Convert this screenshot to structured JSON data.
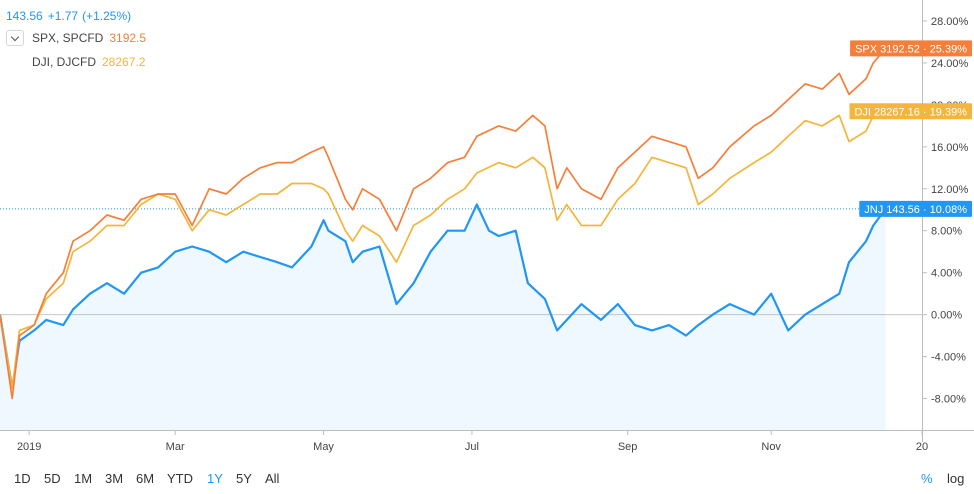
{
  "legend": {
    "main": {
      "price": "143.56",
      "change": "+1.77",
      "change_pct": "(+1.25%)",
      "color": "#2196f3"
    },
    "series": [
      {
        "name": "SPX, SPCFD",
        "value": "3192.5",
        "color": "#f57f3a"
      },
      {
        "name": "DJI, DJCFD",
        "value": "28267.2",
        "color": "#f5b53a"
      }
    ]
  },
  "badges": [
    {
      "text": "SPX 3192.52 · 25.39%",
      "color": "#f57f3a",
      "y": 25.39
    },
    {
      "text": "DJI 28267.16 · 19.39%",
      "color": "#f5b53a",
      "y": 19.39
    },
    {
      "text": "JNJ 143.56 · 10.08%",
      "color": "#2196f3",
      "y": 10.08
    }
  ],
  "toolbar": {
    "ranges": [
      "1D",
      "5D",
      "1M",
      "3M",
      "6M",
      "YTD",
      "1Y",
      "5Y",
      "All"
    ],
    "active": "1Y",
    "percent_label": "%",
    "log_label": "log"
  },
  "chart_data": {
    "type": "line",
    "y_unit": "%",
    "ylim": [
      -11,
      30
    ],
    "y_ticks": [
      -8,
      -4,
      0,
      4,
      8,
      12,
      16,
      20,
      24,
      28
    ],
    "y_tick_labels": [
      "-8.00%",
      "-4.00%",
      "0.00%",
      "4.00%",
      "8.00%",
      "12.00%",
      "16.00%",
      "20.00%",
      "24.00%",
      "28.00%"
    ],
    "x_ticks": [
      {
        "label": "2019",
        "date": "2018-12-31"
      },
      {
        "label": "Mar",
        "date": "2019-03-01"
      },
      {
        "label": "May",
        "date": "2019-05-01"
      },
      {
        "label": "Jul",
        "date": "2019-07-01"
      },
      {
        "label": "Sep",
        "date": "2019-09-03"
      },
      {
        "label": "Nov",
        "date": "2019-11-01"
      },
      {
        "label": "20",
        "date": "2020-01-02"
      }
    ],
    "xlim": [
      "2018-12-19",
      "2020-01-02"
    ],
    "baseline": 0,
    "grid": false,
    "legend_position": "top-left",
    "series": [
      {
        "name": "SPX, SPCFD",
        "color": "#f57f3a",
        "area": false,
        "points": [
          [
            "2018-12-19",
            0
          ],
          [
            "2018-12-24",
            -8
          ],
          [
            "2018-12-27",
            -2
          ],
          [
            "2019-01-02",
            -1
          ],
          [
            "2019-01-07",
            2
          ],
          [
            "2019-01-14",
            4
          ],
          [
            "2019-01-18",
            7
          ],
          [
            "2019-01-25",
            8
          ],
          [
            "2019-02-01",
            9.5
          ],
          [
            "2019-02-08",
            9
          ],
          [
            "2019-02-15",
            11
          ],
          [
            "2019-02-22",
            11.5
          ],
          [
            "2019-03-01",
            11.5
          ],
          [
            "2019-03-08",
            8.5
          ],
          [
            "2019-03-15",
            12
          ],
          [
            "2019-03-22",
            11.5
          ],
          [
            "2019-03-29",
            13
          ],
          [
            "2019-04-05",
            14
          ],
          [
            "2019-04-12",
            14.5
          ],
          [
            "2019-04-18",
            14.5
          ],
          [
            "2019-04-26",
            15.5
          ],
          [
            "2019-05-01",
            16
          ],
          [
            "2019-05-03",
            15
          ],
          [
            "2019-05-10",
            11
          ],
          [
            "2019-05-13",
            10
          ],
          [
            "2019-05-17",
            12
          ],
          [
            "2019-05-24",
            11
          ],
          [
            "2019-05-31",
            8
          ],
          [
            "2019-06-07",
            12
          ],
          [
            "2019-06-14",
            13
          ],
          [
            "2019-06-21",
            14.5
          ],
          [
            "2019-06-28",
            15
          ],
          [
            "2019-07-03",
            17
          ],
          [
            "2019-07-12",
            18
          ],
          [
            "2019-07-19",
            17.5
          ],
          [
            "2019-07-26",
            19
          ],
          [
            "2019-07-31",
            18
          ],
          [
            "2019-08-05",
            12
          ],
          [
            "2019-08-09",
            14
          ],
          [
            "2019-08-15",
            12
          ],
          [
            "2019-08-23",
            11
          ],
          [
            "2019-08-30",
            14
          ],
          [
            "2019-09-06",
            15.5
          ],
          [
            "2019-09-13",
            17
          ],
          [
            "2019-09-20",
            16.5
          ],
          [
            "2019-09-27",
            16
          ],
          [
            "2019-10-02",
            13
          ],
          [
            "2019-10-08",
            14
          ],
          [
            "2019-10-15",
            16
          ],
          [
            "2019-10-25",
            18
          ],
          [
            "2019-11-01",
            19
          ],
          [
            "2019-11-08",
            20.5
          ],
          [
            "2019-11-15",
            22
          ],
          [
            "2019-11-22",
            21.5
          ],
          [
            "2019-11-29",
            23
          ],
          [
            "2019-12-03",
            21
          ],
          [
            "2019-12-10",
            22.5
          ],
          [
            "2019-12-13",
            24
          ],
          [
            "2019-12-18",
            25.39
          ]
        ]
      },
      {
        "name": "DJI, DJCFD",
        "color": "#f5b53a",
        "area": false,
        "points": [
          [
            "2018-12-19",
            0
          ],
          [
            "2018-12-24",
            -7
          ],
          [
            "2018-12-27",
            -1.5
          ],
          [
            "2019-01-02",
            -1
          ],
          [
            "2019-01-07",
            1.5
          ],
          [
            "2019-01-14",
            3
          ],
          [
            "2019-01-18",
            6
          ],
          [
            "2019-01-25",
            7
          ],
          [
            "2019-02-01",
            8.5
          ],
          [
            "2019-02-08",
            8.5
          ],
          [
            "2019-02-15",
            10.5
          ],
          [
            "2019-02-22",
            11.5
          ],
          [
            "2019-03-01",
            11
          ],
          [
            "2019-03-08",
            8
          ],
          [
            "2019-03-15",
            10
          ],
          [
            "2019-03-22",
            9.5
          ],
          [
            "2019-03-29",
            10.5
          ],
          [
            "2019-04-05",
            11.5
          ],
          [
            "2019-04-12",
            11.5
          ],
          [
            "2019-04-18",
            12.5
          ],
          [
            "2019-04-26",
            12.5
          ],
          [
            "2019-05-01",
            12
          ],
          [
            "2019-05-03",
            11.5
          ],
          [
            "2019-05-10",
            8
          ],
          [
            "2019-05-13",
            7
          ],
          [
            "2019-05-17",
            8.5
          ],
          [
            "2019-05-24",
            7.5
          ],
          [
            "2019-05-31",
            5
          ],
          [
            "2019-06-07",
            8.5
          ],
          [
            "2019-06-14",
            9.5
          ],
          [
            "2019-06-21",
            11
          ],
          [
            "2019-06-28",
            12
          ],
          [
            "2019-07-03",
            13.5
          ],
          [
            "2019-07-12",
            14.5
          ],
          [
            "2019-07-19",
            14
          ],
          [
            "2019-07-26",
            15
          ],
          [
            "2019-07-31",
            14
          ],
          [
            "2019-08-05",
            9
          ],
          [
            "2019-08-09",
            10.5
          ],
          [
            "2019-08-15",
            8.5
          ],
          [
            "2019-08-23",
            8.5
          ],
          [
            "2019-08-30",
            11
          ],
          [
            "2019-09-06",
            12.5
          ],
          [
            "2019-09-13",
            15
          ],
          [
            "2019-09-20",
            14.5
          ],
          [
            "2019-09-27",
            14
          ],
          [
            "2019-10-02",
            10.5
          ],
          [
            "2019-10-08",
            11.5
          ],
          [
            "2019-10-15",
            13
          ],
          [
            "2019-10-25",
            14.5
          ],
          [
            "2019-11-01",
            15.5
          ],
          [
            "2019-11-08",
            17
          ],
          [
            "2019-11-15",
            18.5
          ],
          [
            "2019-11-22",
            18
          ],
          [
            "2019-11-29",
            19
          ],
          [
            "2019-12-03",
            16.5
          ],
          [
            "2019-12-10",
            17.5
          ],
          [
            "2019-12-13",
            19
          ],
          [
            "2019-12-18",
            19.39
          ]
        ]
      },
      {
        "name": "JNJ",
        "color": "#2196f3",
        "area": true,
        "points": [
          [
            "2018-12-19",
            0
          ],
          [
            "2018-12-24",
            -7
          ],
          [
            "2018-12-27",
            -2.5
          ],
          [
            "2019-01-02",
            -1.5
          ],
          [
            "2019-01-07",
            -0.5
          ],
          [
            "2019-01-14",
            -1
          ],
          [
            "2019-01-18",
            0.5
          ],
          [
            "2019-01-25",
            2
          ],
          [
            "2019-02-01",
            3
          ],
          [
            "2019-02-08",
            2
          ],
          [
            "2019-02-15",
            4
          ],
          [
            "2019-02-22",
            4.5
          ],
          [
            "2019-03-01",
            6
          ],
          [
            "2019-03-08",
            6.5
          ],
          [
            "2019-03-15",
            6
          ],
          [
            "2019-03-22",
            5
          ],
          [
            "2019-03-29",
            6
          ],
          [
            "2019-04-05",
            5.5
          ],
          [
            "2019-04-12",
            5
          ],
          [
            "2019-04-18",
            4.5
          ],
          [
            "2019-04-26",
            6.5
          ],
          [
            "2019-05-01",
            9
          ],
          [
            "2019-05-03",
            8
          ],
          [
            "2019-05-10",
            7
          ],
          [
            "2019-05-13",
            5
          ],
          [
            "2019-05-17",
            6
          ],
          [
            "2019-05-24",
            6.5
          ],
          [
            "2019-05-31",
            1
          ],
          [
            "2019-06-07",
            3
          ],
          [
            "2019-06-14",
            6
          ],
          [
            "2019-06-21",
            8
          ],
          [
            "2019-06-28",
            8
          ],
          [
            "2019-07-03",
            10.5
          ],
          [
            "2019-07-08",
            8
          ],
          [
            "2019-07-12",
            7.5
          ],
          [
            "2019-07-19",
            8
          ],
          [
            "2019-07-24",
            3
          ],
          [
            "2019-07-31",
            1.5
          ],
          [
            "2019-08-05",
            -1.5
          ],
          [
            "2019-08-09",
            -0.5
          ],
          [
            "2019-08-15",
            1
          ],
          [
            "2019-08-23",
            -0.5
          ],
          [
            "2019-08-30",
            1
          ],
          [
            "2019-09-06",
            -1
          ],
          [
            "2019-09-13",
            -1.5
          ],
          [
            "2019-09-20",
            -1
          ],
          [
            "2019-09-27",
            -2
          ],
          [
            "2019-10-02",
            -1
          ],
          [
            "2019-10-08",
            0
          ],
          [
            "2019-10-15",
            1
          ],
          [
            "2019-10-25",
            0
          ],
          [
            "2019-11-01",
            2
          ],
          [
            "2019-11-08",
            -1.5
          ],
          [
            "2019-11-15",
            0
          ],
          [
            "2019-11-22",
            1
          ],
          [
            "2019-11-29",
            2
          ],
          [
            "2019-12-03",
            5
          ],
          [
            "2019-12-10",
            7
          ],
          [
            "2019-12-13",
            8.5
          ],
          [
            "2019-12-18",
            10.08
          ]
        ]
      }
    ]
  }
}
